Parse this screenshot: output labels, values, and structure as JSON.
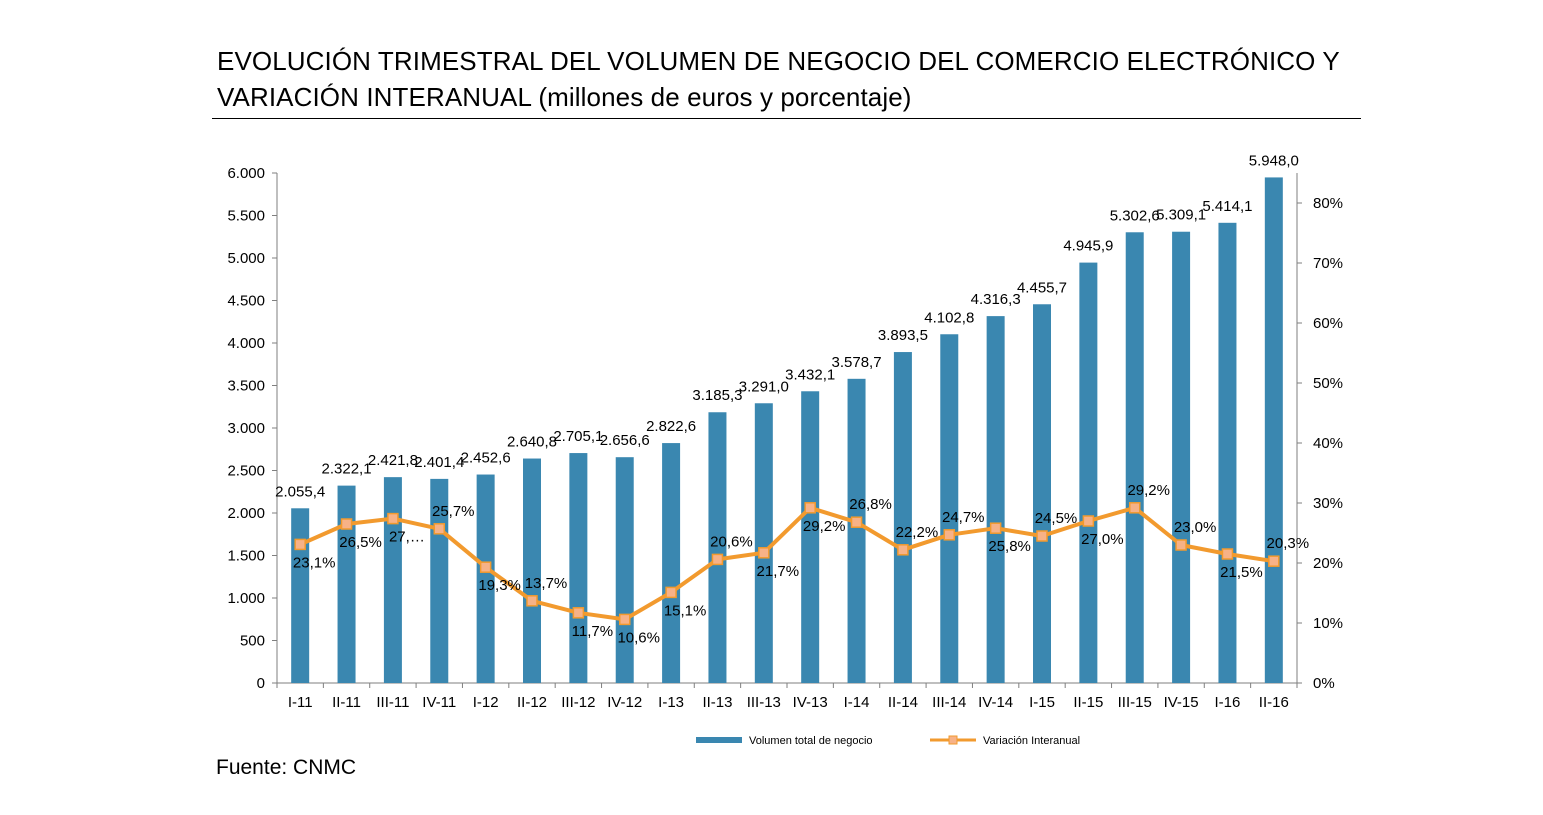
{
  "title": {
    "line1": "EVOLUCIÓN TRIMESTRAL DEL VOLUMEN DE NEGOCIO DEL COMERCIO ELECTRÓNICO Y",
    "line2_main": "VARIACIÓN INTERANUAL",
    "line2_sub": " (millones de euros y porcentaje)"
  },
  "source": "Fuente: CNMC",
  "colors": {
    "bar": "#3a87b0",
    "line": "#f29a2e",
    "marker": "#f7b287"
  },
  "chart_data": {
    "type": "bar",
    "categories": [
      "I-11",
      "II-11",
      "III-11",
      "IV-11",
      "I-12",
      "II-12",
      "III-12",
      "IV-12",
      "I-13",
      "II-13",
      "III-13",
      "IV-13",
      "I-14",
      "II-14",
      "III-14",
      "IV-14",
      "I-15",
      "II-15",
      "III-15",
      "IV-15",
      "I-16",
      "II-16"
    ],
    "series": [
      {
        "name": "Volumen total de negocio",
        "type": "bar",
        "axis": "left",
        "values": [
          2055.4,
          2322.1,
          2421.8,
          2401.4,
          2452.6,
          2640.8,
          2705.1,
          2656.6,
          2822.6,
          3185.3,
          3291.0,
          3432.1,
          3578.7,
          3893.5,
          4102.8,
          4316.3,
          4455.7,
          4945.9,
          5302.6,
          5309.1,
          5414.1,
          5948.0
        ],
        "labels": [
          "2.055,4",
          "2.322,1",
          "2.421,8",
          "2.401,4",
          "2.452,6",
          "2.640,8",
          "2.705,1",
          "2.656,6",
          "2.822,6",
          "3.185,3",
          "3.291,0",
          "3.432,1",
          "3.578,7",
          "3.893,5",
          "4.102,8",
          "4.316,3",
          "4.455,7",
          "4.945,9",
          "5.302,6",
          "5.309,1",
          "5.414,1",
          "5.948,0"
        ]
      },
      {
        "name": "Variación Interanual",
        "type": "line",
        "axis": "right",
        "values": [
          23.1,
          26.5,
          27.4,
          25.7,
          19.3,
          13.7,
          11.7,
          10.6,
          15.1,
          20.6,
          21.7,
          29.2,
          26.8,
          22.2,
          24.7,
          25.8,
          24.5,
          27.0,
          29.2,
          23.0,
          21.5,
          20.3
        ],
        "labels": [
          "23,1%",
          "26,5%",
          "27,…",
          "25,7%",
          "19,3%",
          "13,7%",
          "11,7%",
          "10,6%",
          "15,1%",
          "20,6%",
          "21,7%",
          "29,2%",
          "26,8%",
          "22,2%",
          "24,7%",
          "25,8%",
          "24,5%",
          "27,0%",
          "29,2%",
          "23,0%",
          "21,5%",
          "20,3%"
        ],
        "label_pos": [
          "below",
          "below",
          "below",
          "above",
          "below",
          "above",
          "below",
          "below",
          "below",
          "above",
          "below",
          "below",
          "above",
          "above",
          "above",
          "below",
          "above",
          "below",
          "above",
          "above",
          "below",
          "above"
        ]
      }
    ],
    "y_left": {
      "min": 0,
      "max": 6000,
      "ticks": [
        0,
        500,
        1000,
        1500,
        2000,
        2500,
        3000,
        3500,
        4000,
        4500,
        5000,
        5500,
        6000
      ],
      "tick_labels": [
        "0",
        "500",
        "1.000",
        "1.500",
        "2.000",
        "2.500",
        "3.000",
        "3.500",
        "4.000",
        "4.500",
        "5.000",
        "5.500",
        "6.000"
      ]
    },
    "y_right": {
      "min": 0,
      "max": 85,
      "ticks": [
        0,
        10,
        20,
        30,
        40,
        50,
        60,
        70,
        80
      ],
      "tick_labels": [
        "0%",
        "10%",
        "20%",
        "30%",
        "40%",
        "50%",
        "60%",
        "70%",
        "80%"
      ]
    },
    "grid": false,
    "legend_position": "bottom"
  }
}
